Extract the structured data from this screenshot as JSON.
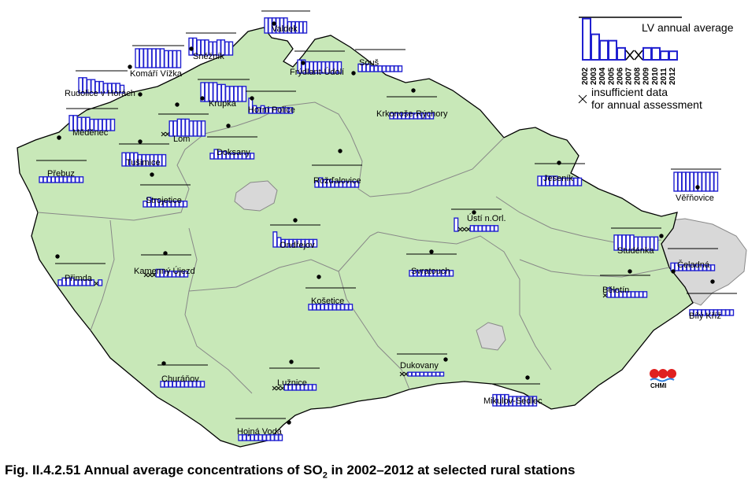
{
  "caption": {
    "prefix": "Fig. II.4.2.51  Annual average concentrations of SO",
    "subscript": "2",
    "suffix": " in 2002–2012 at selected rural stations"
  },
  "legend": {
    "lv_label": "LV annual average",
    "insufficient_line1": "insufficient data",
    "insufficient_line2": "for annual assessment",
    "years": [
      "2002",
      "2003",
      "2004",
      "2005",
      "2006",
      "2007",
      "2008",
      "2009",
      "2010",
      "2011",
      "2012"
    ]
  },
  "logo": {
    "text": "CHMI"
  },
  "colors": {
    "land": "#c8e8b8",
    "neighbor": "#d8d8d8",
    "bar": "#2020d0",
    "border": "#000000"
  },
  "stations": [
    {
      "name": "Valdek"
    },
    {
      "name": "Sněžník"
    },
    {
      "name": "Komáří Vížka"
    },
    {
      "name": "Rudolice v Horách"
    },
    {
      "name": "Krupka"
    },
    {
      "name": "Horní Police"
    },
    {
      "name": "Frýdlant-Údolí"
    },
    {
      "name": "Souš"
    },
    {
      "name": "Krkonoše-Rýchory"
    },
    {
      "name": "Měděnec"
    },
    {
      "name": "Lom"
    },
    {
      "name": "Tušimice"
    },
    {
      "name": "Doksany"
    },
    {
      "name": "Přebuz"
    },
    {
      "name": "Rožďalovice"
    },
    {
      "name": "Jeseník"
    },
    {
      "name": "Věřňovice"
    },
    {
      "name": "Strojetice"
    },
    {
      "name": "Ústí n.Orl."
    },
    {
      "name": "Ondřejov"
    },
    {
      "name": "Studénka"
    },
    {
      "name": "Čeladná"
    },
    {
      "name": "Přimda"
    },
    {
      "name": "Kamenný Újezd"
    },
    {
      "name": "Svratouch"
    },
    {
      "name": "Bělotín"
    },
    {
      "name": "Košetice"
    },
    {
      "name": "Bílý Kříž"
    },
    {
      "name": "Churáňov"
    },
    {
      "name": "Lužnice"
    },
    {
      "name": "Dukovany"
    },
    {
      "name": "Mikulov-Sedlec"
    },
    {
      "name": "Hojná Voda"
    }
  ]
}
